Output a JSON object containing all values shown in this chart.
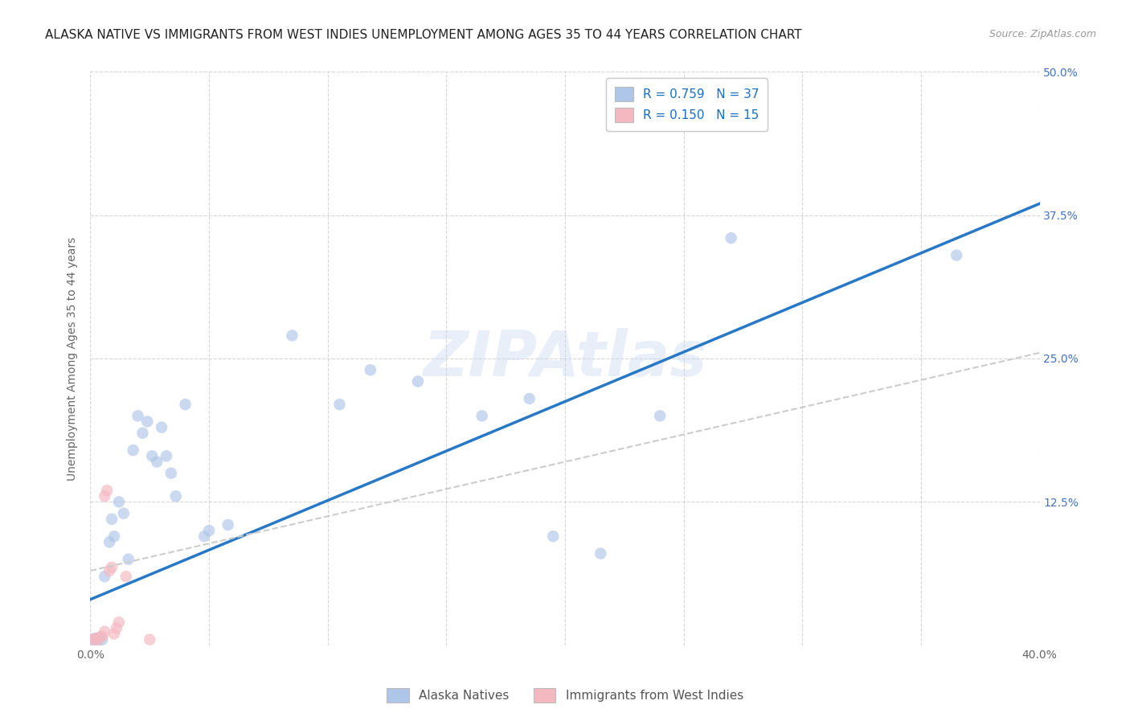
{
  "title": "ALASKA NATIVE VS IMMIGRANTS FROM WEST INDIES UNEMPLOYMENT AMONG AGES 35 TO 44 YEARS CORRELATION CHART",
  "source": "Source: ZipAtlas.com",
  "ylabel": "Unemployment Among Ages 35 to 44 years",
  "xlim": [
    0.0,
    0.4
  ],
  "ylim": [
    0.0,
    0.5
  ],
  "xticks": [
    0.0,
    0.05,
    0.1,
    0.15,
    0.2,
    0.25,
    0.3,
    0.35,
    0.4
  ],
  "yticks": [
    0.0,
    0.125,
    0.25,
    0.375,
    0.5
  ],
  "ytick_labels": [
    "",
    "12.5%",
    "25.0%",
    "37.5%",
    "50.0%"
  ],
  "legend_entries": [
    {
      "label": "R = 0.759   N = 37",
      "color": "#aec6e8"
    },
    {
      "label": "R = 0.150   N = 15",
      "color": "#f4b8c1"
    }
  ],
  "legend_bottom": [
    "Alaska Natives",
    "Immigrants from West Indies"
  ],
  "legend_bottom_colors": [
    "#aec6e8",
    "#f4b8c1"
  ],
  "watermark": "ZIPAtlas",
  "blue_scatter": [
    [
      0.001,
      0.005
    ],
    [
      0.002,
      0.006
    ],
    [
      0.003,
      0.004
    ],
    [
      0.004,
      0.007
    ],
    [
      0.005,
      0.005
    ],
    [
      0.006,
      0.06
    ],
    [
      0.008,
      0.09
    ],
    [
      0.009,
      0.11
    ],
    [
      0.01,
      0.095
    ],
    [
      0.012,
      0.125
    ],
    [
      0.014,
      0.115
    ],
    [
      0.016,
      0.075
    ],
    [
      0.018,
      0.17
    ],
    [
      0.02,
      0.2
    ],
    [
      0.022,
      0.185
    ],
    [
      0.024,
      0.195
    ],
    [
      0.026,
      0.165
    ],
    [
      0.028,
      0.16
    ],
    [
      0.03,
      0.19
    ],
    [
      0.032,
      0.165
    ],
    [
      0.034,
      0.15
    ],
    [
      0.036,
      0.13
    ],
    [
      0.04,
      0.21
    ],
    [
      0.048,
      0.095
    ],
    [
      0.05,
      0.1
    ],
    [
      0.058,
      0.105
    ],
    [
      0.085,
      0.27
    ],
    [
      0.105,
      0.21
    ],
    [
      0.118,
      0.24
    ],
    [
      0.138,
      0.23
    ],
    [
      0.165,
      0.2
    ],
    [
      0.185,
      0.215
    ],
    [
      0.195,
      0.095
    ],
    [
      0.215,
      0.08
    ],
    [
      0.24,
      0.2
    ],
    [
      0.27,
      0.355
    ],
    [
      0.365,
      0.34
    ]
  ],
  "pink_scatter": [
    [
      0.001,
      0.005
    ],
    [
      0.002,
      0.006
    ],
    [
      0.003,
      0.004
    ],
    [
      0.004,
      0.007
    ],
    [
      0.005,
      0.008
    ],
    [
      0.006,
      0.012
    ],
    [
      0.006,
      0.13
    ],
    [
      0.007,
      0.135
    ],
    [
      0.008,
      0.065
    ],
    [
      0.009,
      0.068
    ],
    [
      0.01,
      0.01
    ],
    [
      0.011,
      0.015
    ],
    [
      0.012,
      0.02
    ],
    [
      0.015,
      0.06
    ],
    [
      0.025,
      0.005
    ]
  ],
  "blue_line_x": [
    0.0,
    0.4
  ],
  "blue_line_y": [
    0.04,
    0.385
  ],
  "pink_line_x": [
    0.0,
    0.4
  ],
  "pink_line_y": [
    0.065,
    0.255
  ],
  "scatter_size": 110,
  "scatter_alpha": 0.65,
  "line_color_blue": "#2878c8",
  "line_color_pink": "#cccccc",
  "background_color": "#ffffff",
  "grid_color": "#cccccc",
  "title_fontsize": 11,
  "axis_label_fontsize": 10,
  "tick_fontsize": 10,
  "tick_color_right": "#4472c4",
  "legend_fontsize": 11,
  "source_fontsize": 9
}
